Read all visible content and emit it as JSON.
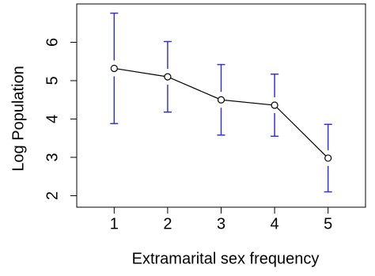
{
  "chart_data": {
    "type": "line",
    "x_label": "Extramarital sex frequency",
    "y_label": "Log Population",
    "x": [
      1,
      2,
      3,
      4,
      5
    ],
    "values": [
      5.32,
      5.1,
      4.5,
      4.36,
      2.98
    ],
    "errors": [
      1.44,
      0.92,
      0.92,
      0.81,
      0.88
    ],
    "color": "#000000",
    "error_color": "#3333dd",
    "xlim": [
      0.3,
      5.7
    ],
    "xticks": [
      1,
      2,
      3,
      4,
      5
    ],
    "ylim": [
      1.7,
      7.0
    ],
    "yticks": [
      2,
      3,
      4,
      5,
      6
    ]
  }
}
